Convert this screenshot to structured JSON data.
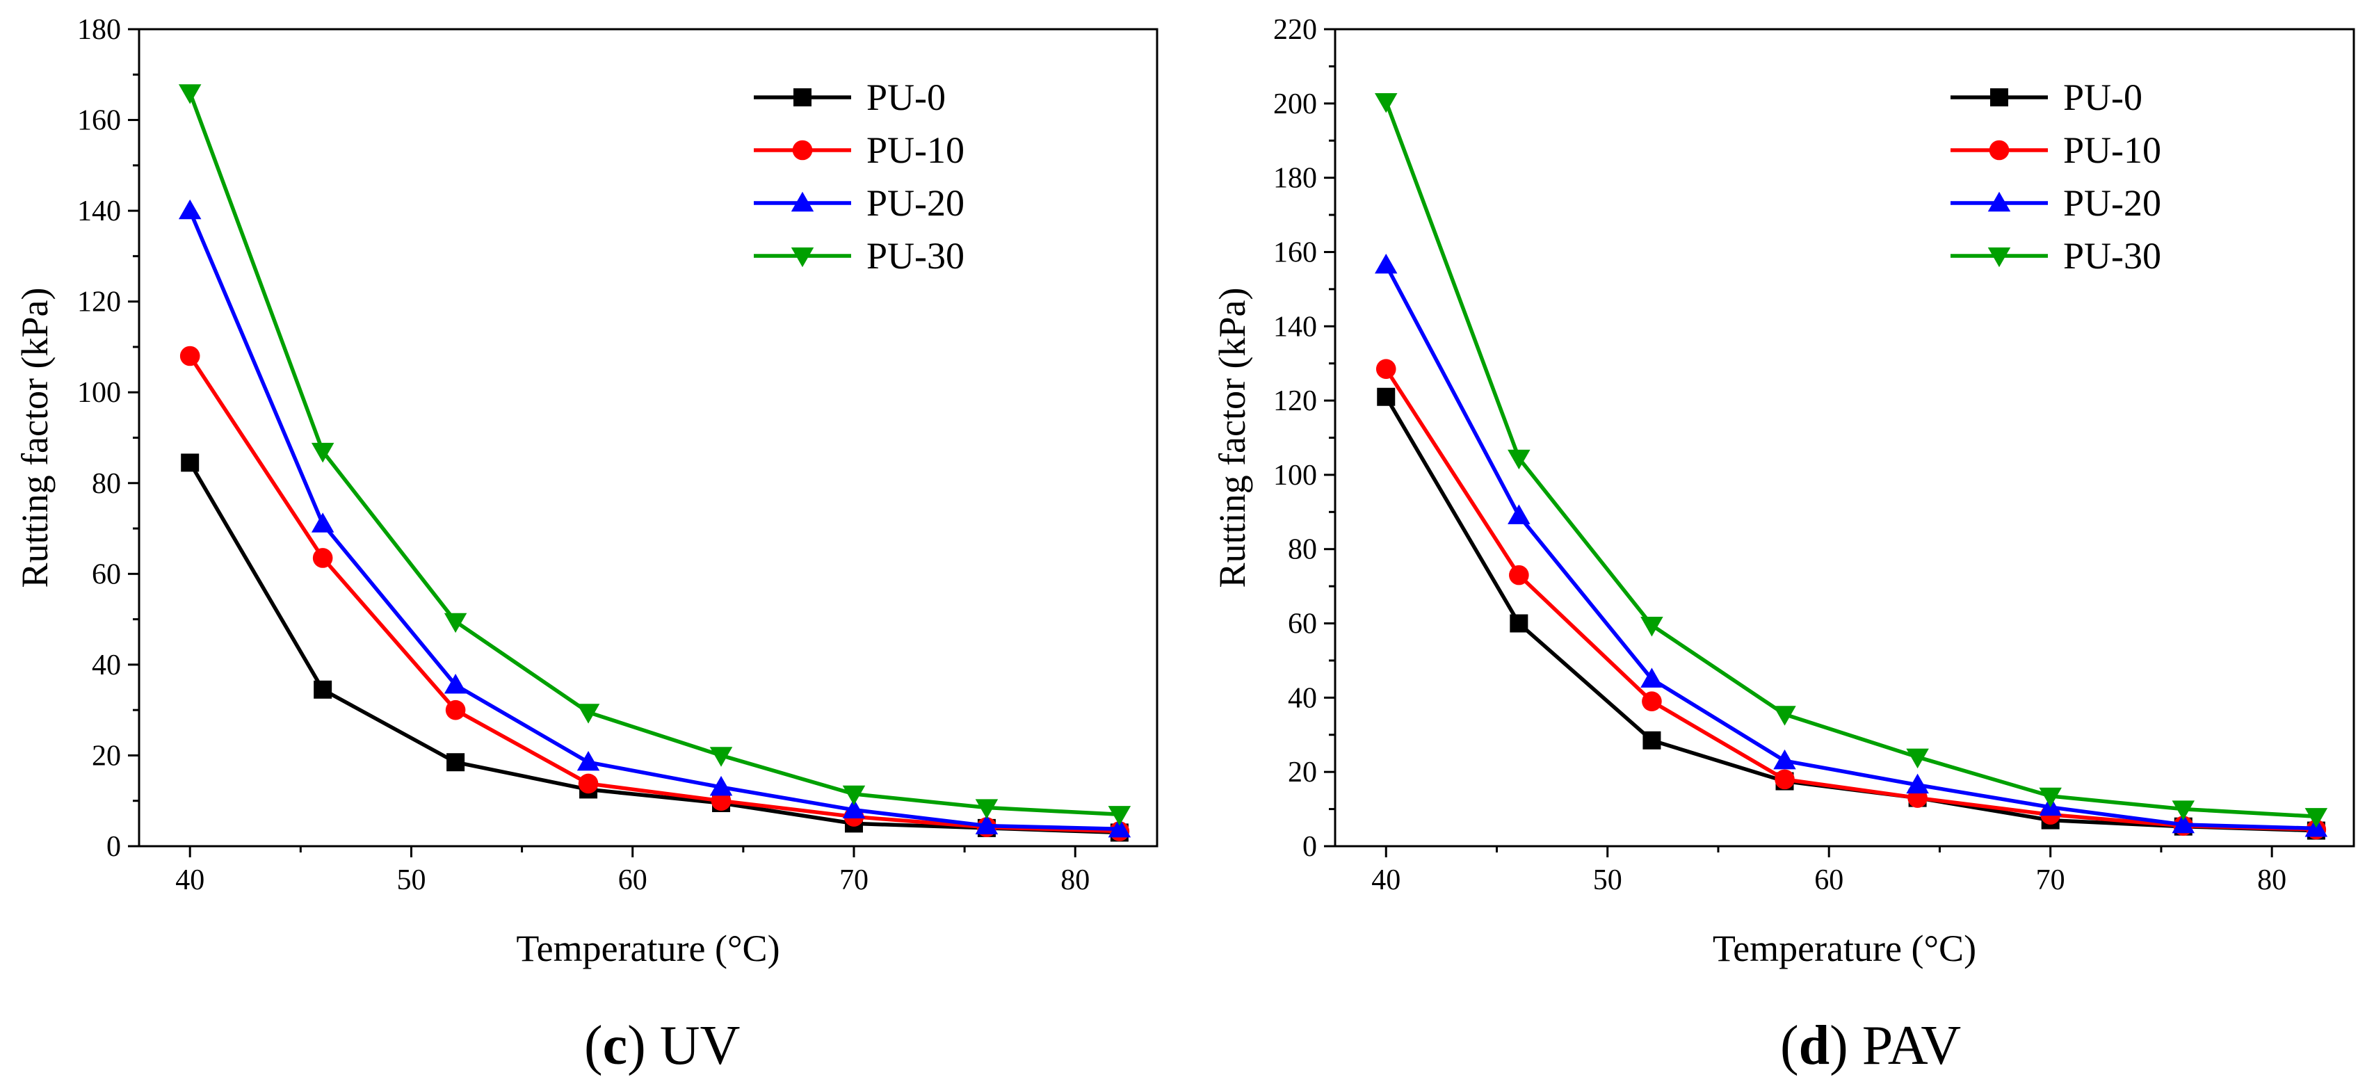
{
  "chart_data": [
    {
      "id": "uv",
      "type": "line",
      "caption_letter": "c",
      "caption_text": "UV",
      "xlabel": "Temperature (°C)",
      "ylabel": "Rutting factor (kPa)",
      "xlim": [
        37.7,
        83.7
      ],
      "ylim": [
        0,
        180
      ],
      "xticks": [
        40,
        50,
        60,
        70,
        80
      ],
      "yticks": [
        0,
        20,
        40,
        60,
        80,
        100,
        120,
        140,
        160,
        180
      ],
      "x": [
        40,
        46,
        52,
        58,
        64,
        70,
        76,
        82
      ],
      "legend_position": "top-right",
      "series": [
        {
          "name": "PU-0",
          "marker": "square",
          "values": [
            84.5,
            34.5,
            18.5,
            12.5,
            9.5,
            5,
            4,
            3
          ]
        },
        {
          "name": "PU-10",
          "marker": "circle",
          "values": [
            108,
            63.5,
            30,
            13.8,
            10,
            6.5,
            4.2,
            3.3
          ]
        },
        {
          "name": "PU-20",
          "marker": "triangle-up",
          "values": [
            140,
            71,
            35.5,
            18.5,
            13,
            8,
            4.5,
            3.8
          ]
        },
        {
          "name": "PU-30",
          "marker": "triangle-down",
          "values": [
            166,
            87,
            49.5,
            29.5,
            20,
            11.5,
            8.5,
            7
          ]
        }
      ]
    },
    {
      "id": "pav",
      "type": "line",
      "caption_letter": "d",
      "caption_text": "PAV",
      "xlabel": "Temperature (°C)",
      "ylabel": "Rutting factor (kPa)",
      "xlim": [
        37.7,
        83.7
      ],
      "ylim": [
        0,
        220
      ],
      "xticks": [
        40,
        50,
        60,
        70,
        80
      ],
      "yticks": [
        0,
        20,
        40,
        60,
        80,
        100,
        120,
        140,
        160,
        180,
        200,
        220
      ],
      "x": [
        40,
        46,
        52,
        58,
        64,
        70,
        76,
        82
      ],
      "legend_position": "top-right",
      "series": [
        {
          "name": "PU-0",
          "marker": "square",
          "values": [
            121,
            60,
            28.5,
            17.5,
            13,
            7,
            5.3,
            4.2
          ]
        },
        {
          "name": "PU-10",
          "marker": "circle",
          "values": [
            128.5,
            73,
            39,
            18,
            13,
            8.5,
            5.5,
            4.5
          ]
        },
        {
          "name": "PU-20",
          "marker": "triangle-up",
          "values": [
            156.5,
            89,
            45,
            23,
            16.5,
            10.5,
            5.8,
            4.8
          ]
        },
        {
          "name": "PU-30",
          "marker": "triangle-down",
          "values": [
            200.5,
            104.5,
            59.5,
            35.5,
            24,
            13.5,
            10,
            8
          ]
        }
      ]
    }
  ],
  "colors": {
    "PU-0": "#000000",
    "PU-10": "#ff0000",
    "PU-20": "#0000ff",
    "PU-30": "#00a000",
    "axis": "#000000"
  }
}
